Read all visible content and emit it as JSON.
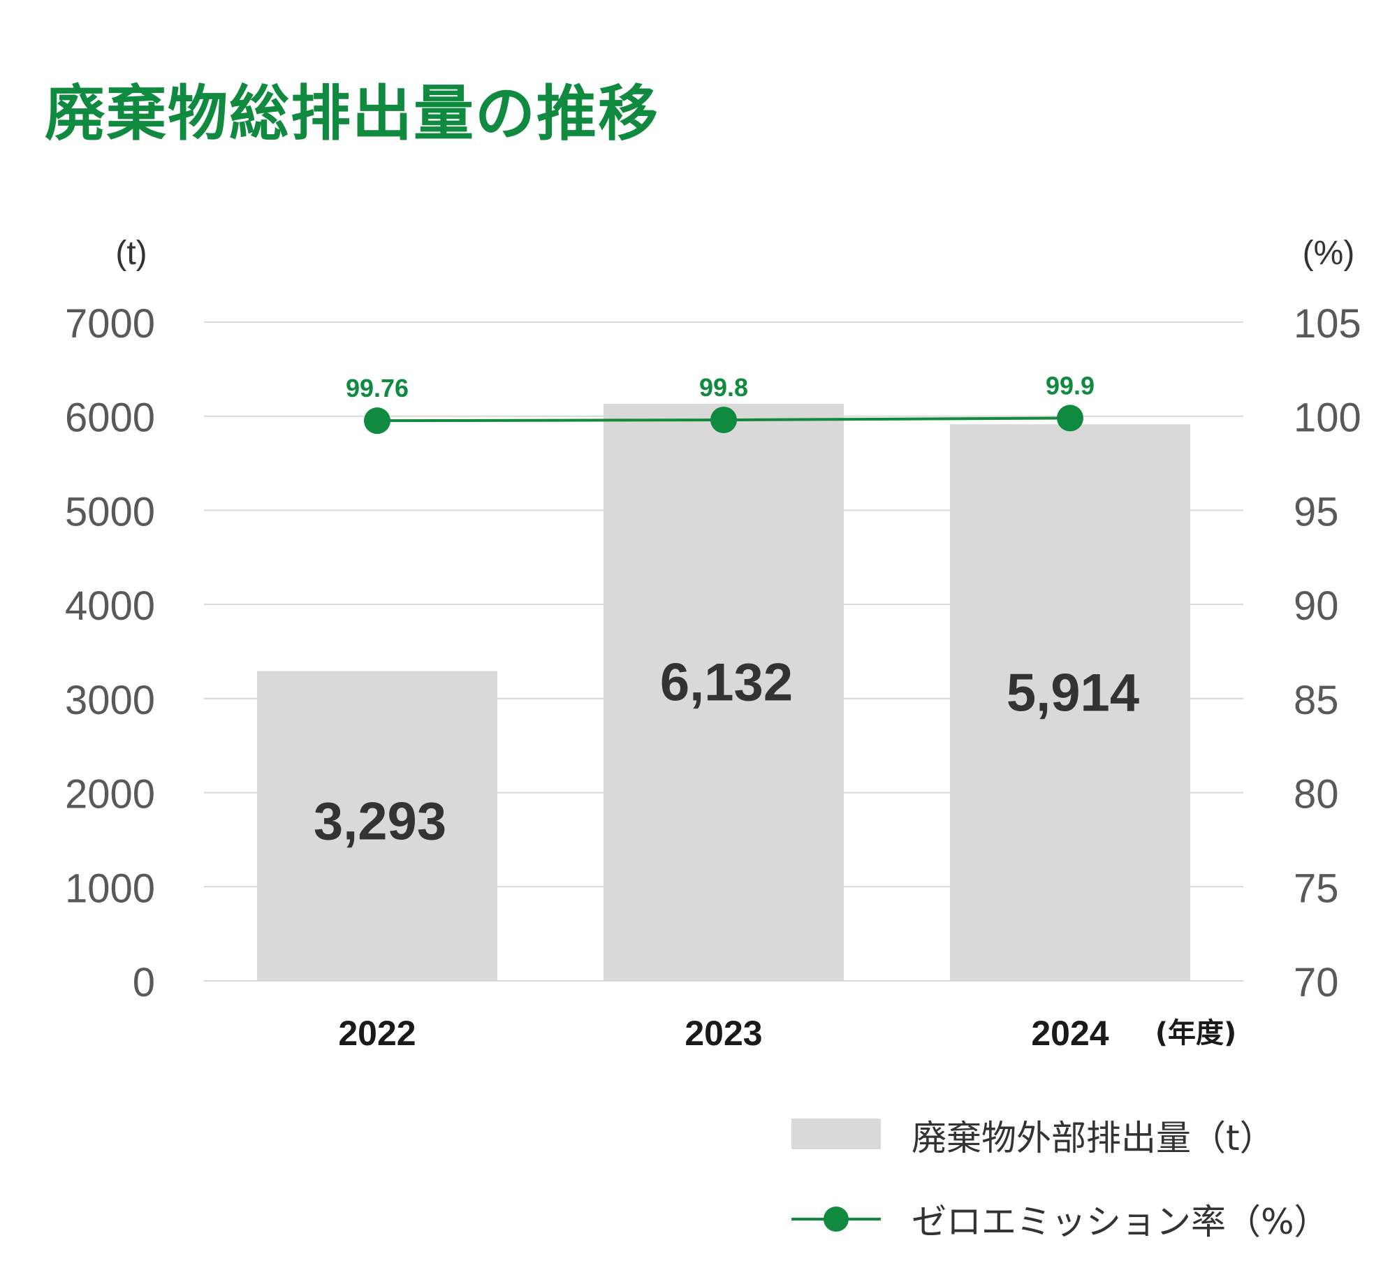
{
  "title": "廃棄物総排出量の推移",
  "chart_data": {
    "type": "bar",
    "categories": [
      "2022",
      "2023",
      "2024"
    ],
    "x_unit_label": "(年度)",
    "series": [
      {
        "name": "廃棄物外部排出量（t）",
        "type": "bar",
        "axis": "left",
        "values": [
          3293,
          6132,
          5914
        ],
        "data_labels": [
          "3,293",
          "6,132",
          "5,914"
        ],
        "color": "#d9d9d9"
      },
      {
        "name": "ゼロエミッション率（%）",
        "type": "line",
        "axis": "right",
        "values": [
          99.76,
          99.8,
          99.9
        ],
        "data_labels": [
          "99.76",
          "99.8",
          "99.9"
        ],
        "color": "#0f8a3f"
      }
    ],
    "y_left": {
      "unit_label": "(t)",
      "ylim": [
        0,
        7000
      ],
      "ticks": [
        "0",
        "1000",
        "2000",
        "3000",
        "4000",
        "5000",
        "6000",
        "7000"
      ]
    },
    "y_right": {
      "unit_label": "(%)",
      "ylim": [
        70,
        105
      ],
      "ticks": [
        "70",
        "75",
        "80",
        "85",
        "90",
        "95",
        "100",
        "105"
      ]
    },
    "grid": true,
    "legend_position": "bottom-right"
  },
  "colors": {
    "accent": "#0f8a3f",
    "bar": "#d9d9d9",
    "grid": "#d9d9d9",
    "axis_text": "#595959",
    "value_text": "#333333"
  }
}
